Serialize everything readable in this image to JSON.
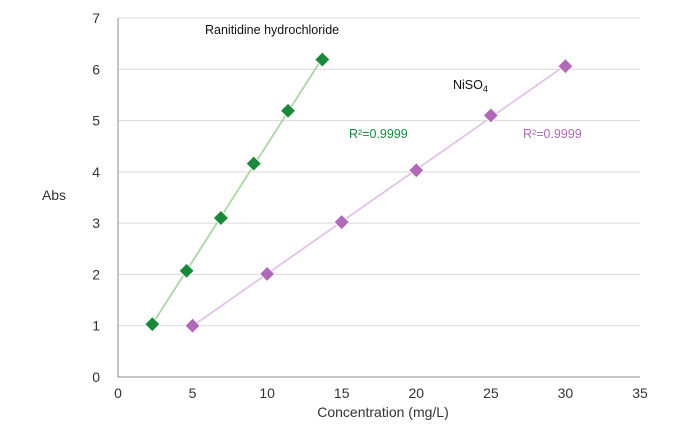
{
  "chart_data": {
    "type": "scatter",
    "xlabel": "Concentration (mg/L)",
    "ylabel": "Abs",
    "xlim": [
      0,
      35
    ],
    "ylim": [
      0,
      7
    ],
    "x_ticks": [
      "0",
      "5",
      "10",
      "15",
      "20",
      "25",
      "30",
      "35"
    ],
    "y_ticks": [
      "0",
      "1",
      "2",
      "3",
      "4",
      "5",
      "6",
      "7"
    ],
    "grid": "horizontal",
    "trendlines": true,
    "series": [
      {
        "name": "Ranitidine hydrochloride",
        "marker_color": "#1a8a3a",
        "line_color": "#a8d8a0",
        "r2_label": "R²=0.9999",
        "r2_color": "#1a8a3a",
        "x": [
          2.3,
          4.6,
          6.9,
          9.1,
          11.4,
          13.7
        ],
        "y": [
          1.03,
          2.07,
          3.1,
          4.16,
          5.19,
          6.19
        ]
      },
      {
        "name": "NiSO4",
        "marker_color": "#b06ab8",
        "line_color": "#e2c4e6",
        "r2_label": "R²=0.9999",
        "r2_color": "#b06ab8",
        "x": [
          5,
          10,
          15,
          20,
          25,
          30
        ],
        "y": [
          1.0,
          2.01,
          3.02,
          4.03,
          5.1,
          6.06
        ]
      }
    ]
  }
}
